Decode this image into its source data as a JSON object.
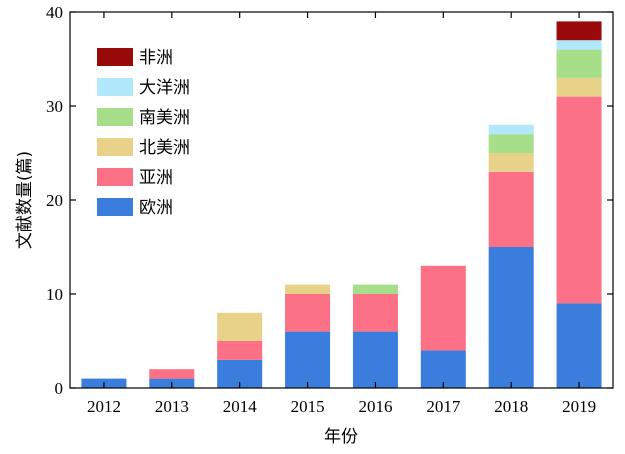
{
  "chart_data": {
    "type": "bar",
    "stacked": true,
    "categories": [
      "2012",
      "2013",
      "2014",
      "2015",
      "2016",
      "2017",
      "2018",
      "2019"
    ],
    "series": [
      {
        "name": "欧洲",
        "color": "#3b7ddd",
        "values": [
          1,
          1,
          3,
          6,
          6,
          4,
          15,
          9
        ]
      },
      {
        "name": "亚洲",
        "color": "#fd7186",
        "values": [
          0,
          1,
          2,
          4,
          4,
          9,
          8,
          22
        ]
      },
      {
        "name": "北美洲",
        "color": "#e8d28a",
        "values": [
          0,
          0,
          3,
          1,
          0,
          0,
          2,
          2
        ]
      },
      {
        "name": "南美洲",
        "color": "#a6de8a",
        "values": [
          0,
          0,
          0,
          0,
          1,
          0,
          2,
          3
        ]
      },
      {
        "name": "大洋洲",
        "color": "#b2e8fb",
        "values": [
          0,
          0,
          0,
          0,
          0,
          0,
          1,
          1
        ]
      },
      {
        "name": "非洲",
        "color": "#990a0a",
        "values": [
          0,
          0,
          0,
          0,
          0,
          0,
          0,
          2
        ]
      }
    ],
    "xlabel": "年份",
    "ylabel": "文献数量(篇)",
    "ylim": [
      0,
      40
    ],
    "yticks": [
      0,
      10,
      20,
      30,
      40
    ],
    "grid": false,
    "legend_position": "top-left",
    "legend_order": [
      "非洲",
      "大洋洲",
      "南美洲",
      "北美洲",
      "亚洲",
      "欧洲"
    ]
  }
}
